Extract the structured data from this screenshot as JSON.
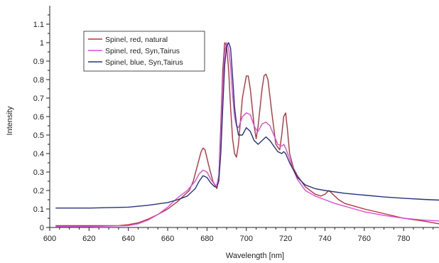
{
  "chart_data": {
    "type": "line",
    "xlabel": "Wavelength [nm]",
    "ylabel": "Intensity",
    "xlim": [
      600,
      798
    ],
    "ylim": [
      0,
      1.2
    ],
    "x_ticks": [
      600,
      620,
      640,
      660,
      680,
      700,
      720,
      740,
      760,
      780
    ],
    "y_ticks": [
      0,
      0.1,
      0.2,
      0.3,
      0.4,
      0.5,
      0.6,
      0.7,
      0.8,
      0.9,
      1,
      1.1
    ],
    "legend_position": "top-left",
    "grid": false,
    "series": [
      {
        "name": "Spinel, red, natural",
        "color": "#b8333a",
        "points": [
          [
            603,
            0.01
          ],
          [
            620,
            0.01
          ],
          [
            635,
            0.01
          ],
          [
            640,
            0.015
          ],
          [
            645,
            0.025
          ],
          [
            650,
            0.045
          ],
          [
            655,
            0.07
          ],
          [
            660,
            0.1
          ],
          [
            665,
            0.14
          ],
          [
            668,
            0.17
          ],
          [
            671,
            0.2
          ],
          [
            673,
            0.25
          ],
          [
            675,
            0.33
          ],
          [
            677,
            0.41
          ],
          [
            678,
            0.43
          ],
          [
            679,
            0.42
          ],
          [
            681,
            0.33
          ],
          [
            683,
            0.25
          ],
          [
            685,
            0.21
          ],
          [
            686,
            0.27
          ],
          [
            687,
            0.55
          ],
          [
            688,
            0.85
          ],
          [
            689,
            1.0
          ],
          [
            690,
            0.98
          ],
          [
            691,
            0.85
          ],
          [
            692,
            0.65
          ],
          [
            693,
            0.48
          ],
          [
            694,
            0.4
          ],
          [
            695,
            0.38
          ],
          [
            696,
            0.45
          ],
          [
            698,
            0.7
          ],
          [
            700,
            0.82
          ],
          [
            701,
            0.82
          ],
          [
            702,
            0.75
          ],
          [
            704,
            0.55
          ],
          [
            705,
            0.48
          ],
          [
            706,
            0.55
          ],
          [
            708,
            0.75
          ],
          [
            709,
            0.82
          ],
          [
            710,
            0.83
          ],
          [
            711,
            0.8
          ],
          [
            713,
            0.62
          ],
          [
            715,
            0.45
          ],
          [
            717,
            0.42
          ],
          [
            718,
            0.5
          ],
          [
            719,
            0.6
          ],
          [
            720,
            0.62
          ],
          [
            721,
            0.52
          ],
          [
            722,
            0.4
          ],
          [
            724,
            0.32
          ],
          [
            726,
            0.28
          ],
          [
            730,
            0.22
          ],
          [
            735,
            0.18
          ],
          [
            738,
            0.17
          ],
          [
            740,
            0.18
          ],
          [
            742,
            0.2
          ],
          [
            744,
            0.18
          ],
          [
            747,
            0.15
          ],
          [
            750,
            0.13
          ],
          [
            755,
            0.115
          ],
          [
            760,
            0.1
          ],
          [
            770,
            0.075
          ],
          [
            780,
            0.05
          ],
          [
            790,
            0.035
          ],
          [
            798,
            0.02
          ]
        ]
      },
      {
        "name": "Spinel, red, Syn,Tairus",
        "color": "#d94fd9",
        "points": [
          [
            603,
            0.005
          ],
          [
            620,
            0.005
          ],
          [
            640,
            0.01
          ],
          [
            645,
            0.02
          ],
          [
            650,
            0.04
          ],
          [
            655,
            0.07
          ],
          [
            660,
            0.11
          ],
          [
            665,
            0.16
          ],
          [
            670,
            0.2
          ],
          [
            674,
            0.25
          ],
          [
            676,
            0.29
          ],
          [
            678,
            0.31
          ],
          [
            680,
            0.3
          ],
          [
            682,
            0.26
          ],
          [
            684,
            0.23
          ],
          [
            685,
            0.23
          ],
          [
            686,
            0.28
          ],
          [
            687,
            0.5
          ],
          [
            688,
            0.78
          ],
          [
            689,
            0.95
          ],
          [
            690,
            1.0
          ],
          [
            691,
            0.97
          ],
          [
            692,
            0.87
          ],
          [
            693,
            0.72
          ],
          [
            694,
            0.6
          ],
          [
            695,
            0.55
          ],
          [
            696,
            0.54
          ],
          [
            698,
            0.6
          ],
          [
            700,
            0.62
          ],
          [
            702,
            0.61
          ],
          [
            704,
            0.55
          ],
          [
            705,
            0.53
          ],
          [
            706,
            0.52
          ],
          [
            708,
            0.56
          ],
          [
            710,
            0.57
          ],
          [
            712,
            0.55
          ],
          [
            714,
            0.5
          ],
          [
            716,
            0.45
          ],
          [
            718,
            0.44
          ],
          [
            719,
            0.45
          ],
          [
            720,
            0.43
          ],
          [
            722,
            0.37
          ],
          [
            724,
            0.31
          ],
          [
            726,
            0.26
          ],
          [
            730,
            0.2
          ],
          [
            735,
            0.17
          ],
          [
            740,
            0.15
          ],
          [
            745,
            0.13
          ],
          [
            750,
            0.115
          ],
          [
            755,
            0.1
          ],
          [
            760,
            0.085
          ],
          [
            770,
            0.065
          ],
          [
            780,
            0.05
          ],
          [
            790,
            0.04
          ],
          [
            798,
            0.035
          ]
        ]
      },
      {
        "name": "Spinel, blue, Syn,Tairus",
        "color": "#27347a",
        "points": [
          [
            603,
            0.105
          ],
          [
            620,
            0.105
          ],
          [
            640,
            0.11
          ],
          [
            650,
            0.12
          ],
          [
            660,
            0.135
          ],
          [
            665,
            0.15
          ],
          [
            670,
            0.17
          ],
          [
            674,
            0.21
          ],
          [
            676,
            0.25
          ],
          [
            678,
            0.28
          ],
          [
            680,
            0.27
          ],
          [
            682,
            0.24
          ],
          [
            684,
            0.22
          ],
          [
            685,
            0.22
          ],
          [
            686,
            0.25
          ],
          [
            687,
            0.4
          ],
          [
            688,
            0.65
          ],
          [
            689,
            0.88
          ],
          [
            690,
            0.98
          ],
          [
            691,
            1.0
          ],
          [
            692,
            0.97
          ],
          [
            693,
            0.82
          ],
          [
            694,
            0.65
          ],
          [
            695,
            0.56
          ],
          [
            696,
            0.5
          ],
          [
            698,
            0.5
          ],
          [
            700,
            0.54
          ],
          [
            702,
            0.52
          ],
          [
            704,
            0.47
          ],
          [
            706,
            0.45
          ],
          [
            708,
            0.47
          ],
          [
            710,
            0.49
          ],
          [
            712,
            0.47
          ],
          [
            714,
            0.44
          ],
          [
            716,
            0.41
          ],
          [
            718,
            0.4
          ],
          [
            719,
            0.41
          ],
          [
            720,
            0.4
          ],
          [
            722,
            0.35
          ],
          [
            724,
            0.31
          ],
          [
            726,
            0.27
          ],
          [
            730,
            0.23
          ],
          [
            735,
            0.21
          ],
          [
            740,
            0.2
          ],
          [
            750,
            0.185
          ],
          [
            760,
            0.175
          ],
          [
            770,
            0.165
          ],
          [
            780,
            0.158
          ],
          [
            790,
            0.152
          ],
          [
            798,
            0.148
          ]
        ]
      }
    ]
  }
}
